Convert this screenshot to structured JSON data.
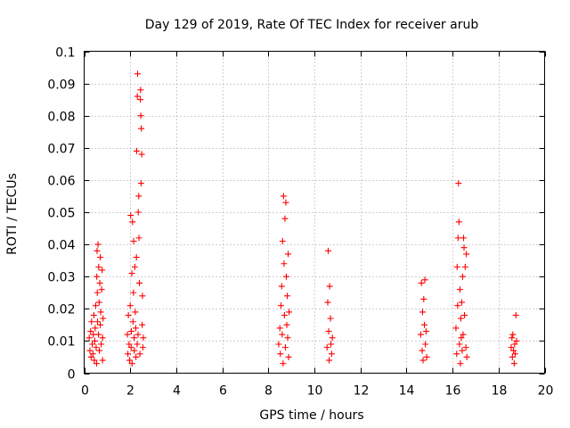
{
  "chart_data": {
    "type": "scatter",
    "title": "Day 129 of 2019, Rate Of TEC Index for receiver arub",
    "xlabel": "GPS time / hours",
    "ylabel": "ROTI / TECUs",
    "xlim": [
      0,
      20
    ],
    "ylim": [
      0,
      0.1
    ],
    "xticks": [
      0,
      2,
      4,
      6,
      8,
      10,
      12,
      14,
      16,
      18,
      20
    ],
    "yticks": [
      0,
      0.01,
      0.02,
      0.03,
      0.04,
      0.05,
      0.06,
      0.07,
      0.08,
      0.09,
      0.1
    ],
    "xtick_labels": [
      "0",
      "2",
      "4",
      "6",
      "8",
      "10",
      "12",
      "14",
      "16",
      "18",
      "20"
    ],
    "ytick_labels": [
      "0",
      "0.01",
      "0.02",
      "0.03",
      "0.04",
      "0.05",
      "0.06",
      "0.07",
      "0.08",
      "0.09",
      "0.1"
    ],
    "grid": true,
    "marker": "+",
    "color": "#ff0000",
    "series": [
      {
        "name": "ROTI",
        "points": [
          [
            0.22,
            0.011
          ],
          [
            0.25,
            0.007
          ],
          [
            0.28,
            0.013
          ],
          [
            0.3,
            0.005
          ],
          [
            0.32,
            0.016
          ],
          [
            0.35,
            0.009
          ],
          [
            0.38,
            0.006
          ],
          [
            0.4,
            0.012
          ],
          [
            0.42,
            0.018
          ],
          [
            0.44,
            0.004
          ],
          [
            0.46,
            0.01
          ],
          [
            0.48,
            0.014
          ],
          [
            0.5,
            0.021
          ],
          [
            0.52,
            0.008
          ],
          [
            0.54,
            0.003
          ],
          [
            0.55,
            0.03
          ],
          [
            0.56,
            0.038
          ],
          [
            0.57,
            0.025
          ],
          [
            0.58,
            0.016
          ],
          [
            0.6,
            0.04
          ],
          [
            0.62,
            0.012
          ],
          [
            0.63,
            0.033
          ],
          [
            0.65,
            0.022
          ],
          [
            0.66,
            0.007
          ],
          [
            0.68,
            0.028
          ],
          [
            0.7,
            0.036
          ],
          [
            0.7,
            0.015
          ],
          [
            0.72,
            0.019
          ],
          [
            0.74,
            0.009
          ],
          [
            0.76,
            0.026
          ],
          [
            0.78,
            0.032
          ],
          [
            0.8,
            0.011
          ],
          [
            0.8,
            0.004
          ],
          [
            0.82,
            0.017
          ],
          [
            1.88,
            0.012
          ],
          [
            1.9,
            0.006
          ],
          [
            1.92,
            0.018
          ],
          [
            1.95,
            0.009
          ],
          [
            1.97,
            0.004
          ],
          [
            2.0,
            0.021
          ],
          [
            2.02,
            0.049
          ],
          [
            2.04,
            0.008
          ],
          [
            2.05,
            0.013
          ],
          [
            2.07,
            0.031
          ],
          [
            2.08,
            0.003
          ],
          [
            2.1,
            0.047
          ],
          [
            2.12,
            0.016
          ],
          [
            2.14,
            0.025
          ],
          [
            2.15,
            0.041
          ],
          [
            2.17,
            0.011
          ],
          [
            2.18,
            0.007
          ],
          [
            2.2,
            0.033
          ],
          [
            2.22,
            0.019
          ],
          [
            2.24,
            0.014
          ],
          [
            2.25,
            0.005
          ],
          [
            2.27,
            0.036
          ],
          [
            2.28,
            0.069
          ],
          [
            2.3,
            0.009
          ],
          [
            2.31,
            0.086
          ],
          [
            2.32,
            0.093
          ],
          [
            2.34,
            0.012
          ],
          [
            2.35,
            0.05
          ],
          [
            2.37,
            0.055
          ],
          [
            2.38,
            0.042
          ],
          [
            2.4,
            0.028
          ],
          [
            2.42,
            0.006
          ],
          [
            2.44,
            0.085
          ],
          [
            2.45,
            0.088
          ],
          [
            2.46,
            0.08
          ],
          [
            2.47,
            0.059
          ],
          [
            2.48,
            0.076
          ],
          [
            2.5,
            0.068
          ],
          [
            2.52,
            0.015
          ],
          [
            2.53,
            0.024
          ],
          [
            2.55,
            0.008
          ],
          [
            2.57,
            0.011
          ],
          [
            8.45,
            0.009
          ],
          [
            8.5,
            0.014
          ],
          [
            8.52,
            0.006
          ],
          [
            8.55,
            0.021
          ],
          [
            8.58,
            0.027
          ],
          [
            8.6,
            0.012
          ],
          [
            8.62,
            0.041
          ],
          [
            8.64,
            0.003
          ],
          [
            8.66,
            0.055
          ],
          [
            8.68,
            0.034
          ],
          [
            8.7,
            0.018
          ],
          [
            8.72,
            0.048
          ],
          [
            8.74,
            0.008
          ],
          [
            8.76,
            0.053
          ],
          [
            8.78,
            0.03
          ],
          [
            8.8,
            0.015
          ],
          [
            8.82,
            0.024
          ],
          [
            8.84,
            0.011
          ],
          [
            8.86,
            0.037
          ],
          [
            8.88,
            0.005
          ],
          [
            8.9,
            0.019
          ],
          [
            10.55,
            0.008
          ],
          [
            10.58,
            0.022
          ],
          [
            10.6,
            0.038
          ],
          [
            10.62,
            0.013
          ],
          [
            10.64,
            0.004
          ],
          [
            10.66,
            0.027
          ],
          [
            10.7,
            0.017
          ],
          [
            10.72,
            0.009
          ],
          [
            10.75,
            0.006
          ],
          [
            10.78,
            0.011
          ],
          [
            14.62,
            0.012
          ],
          [
            14.65,
            0.028
          ],
          [
            14.68,
            0.007
          ],
          [
            14.7,
            0.019
          ],
          [
            14.72,
            0.004
          ],
          [
            14.75,
            0.023
          ],
          [
            14.78,
            0.015
          ],
          [
            14.8,
            0.029
          ],
          [
            14.82,
            0.009
          ],
          [
            14.85,
            0.013
          ],
          [
            14.88,
            0.005
          ],
          [
            16.15,
            0.014
          ],
          [
            16.18,
            0.006
          ],
          [
            16.2,
            0.033
          ],
          [
            16.22,
            0.021
          ],
          [
            16.24,
            0.042
          ],
          [
            16.26,
            0.059
          ],
          [
            16.28,
            0.047
          ],
          [
            16.3,
            0.009
          ],
          [
            16.32,
            0.026
          ],
          [
            16.34,
            0.003
          ],
          [
            16.36,
            0.017
          ],
          [
            16.38,
            0.011
          ],
          [
            16.4,
            0.022
          ],
          [
            16.42,
            0.007
          ],
          [
            16.44,
            0.03
          ],
          [
            16.46,
            0.012
          ],
          [
            16.48,
            0.042
          ],
          [
            16.5,
            0.039
          ],
          [
            16.52,
            0.018
          ],
          [
            16.55,
            0.033
          ],
          [
            16.58,
            0.008
          ],
          [
            16.6,
            0.037
          ],
          [
            16.62,
            0.005
          ],
          [
            18.55,
            0.008
          ],
          [
            18.58,
            0.011
          ],
          [
            18.6,
            0.005
          ],
          [
            18.62,
            0.012
          ],
          [
            18.65,
            0.007
          ],
          [
            18.68,
            0.003
          ],
          [
            18.7,
            0.009
          ],
          [
            18.72,
            0.006
          ],
          [
            18.75,
            0.018
          ],
          [
            18.78,
            0.01
          ]
        ]
      }
    ]
  }
}
